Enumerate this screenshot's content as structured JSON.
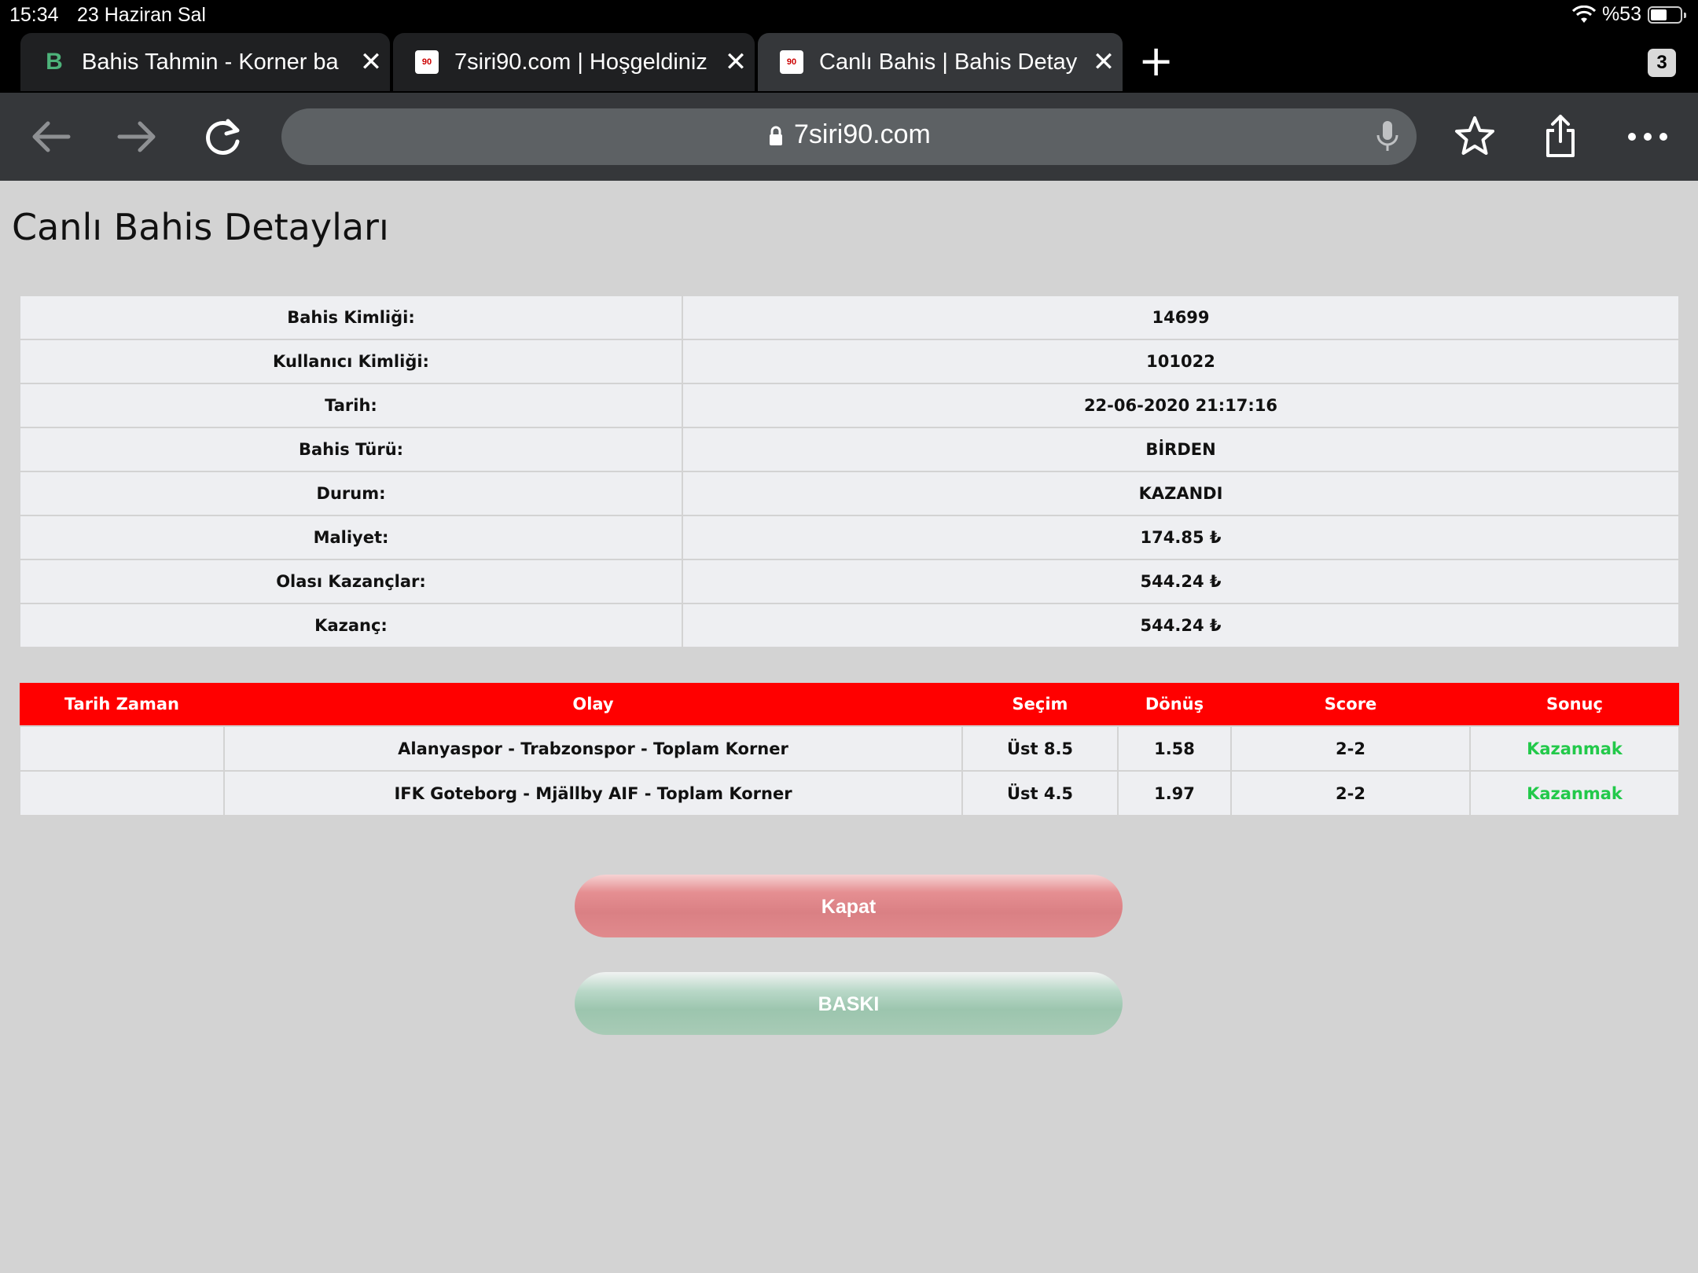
{
  "status_bar": {
    "time": "15:34",
    "date": "23 Haziran Sal",
    "battery": "%53"
  },
  "browser": {
    "tabs": [
      {
        "title": "Bahis Tahmin - Korner ba",
        "active": false,
        "favicon": "green-b-icon"
      },
      {
        "title": "7siri90.com | Hoşgeldiniz",
        "active": false,
        "favicon": "site-icon"
      },
      {
        "title": "Canlı Bahis | Bahis Detay",
        "active": true,
        "favicon": "site-icon"
      }
    ],
    "tab_count": "3",
    "url": "7siri90.com"
  },
  "page": {
    "title": "Canlı Bahis Detayları",
    "details": [
      {
        "label": "Bahis Kimliği:",
        "value": "14699"
      },
      {
        "label": "Kullanıcı Kimliği:",
        "value": "101022"
      },
      {
        "label": "Tarih:",
        "value": "22-06-2020 21:17:16"
      },
      {
        "label": "Bahis Türü:",
        "value": "BİRDEN"
      },
      {
        "label": "Durum:",
        "value": "KAZANDI"
      },
      {
        "label": "Maliyet:",
        "value": "174.85 ₺"
      },
      {
        "label": "Olası Kazançlar:",
        "value": "544.24 ₺"
      },
      {
        "label": "Kazanç:",
        "value": "544.24 ₺"
      }
    ],
    "bets_headers": [
      "Tarih Zaman",
      "Olay",
      "Seçim",
      "Dönüş",
      "Score",
      "Sonuç"
    ],
    "bets": [
      {
        "datetime": "",
        "event": "Alanyaspor - Trabzonspor - Toplam Korner",
        "selection": "Üst 8.5",
        "odds": "1.58",
        "score": "2-2",
        "result": "Kazanmak"
      },
      {
        "datetime": "",
        "event": "IFK Goteborg - Mjällby AIF - Toplam Korner",
        "selection": "Üst 4.5",
        "odds": "1.97",
        "score": "2-2",
        "result": "Kazanmak"
      }
    ],
    "buttons": {
      "close": "Kapat",
      "print": "BASKI"
    }
  },
  "colors": {
    "header_red": "#ff0000",
    "win_green": "#22c94a",
    "page_bg": "#d3d3d3"
  }
}
